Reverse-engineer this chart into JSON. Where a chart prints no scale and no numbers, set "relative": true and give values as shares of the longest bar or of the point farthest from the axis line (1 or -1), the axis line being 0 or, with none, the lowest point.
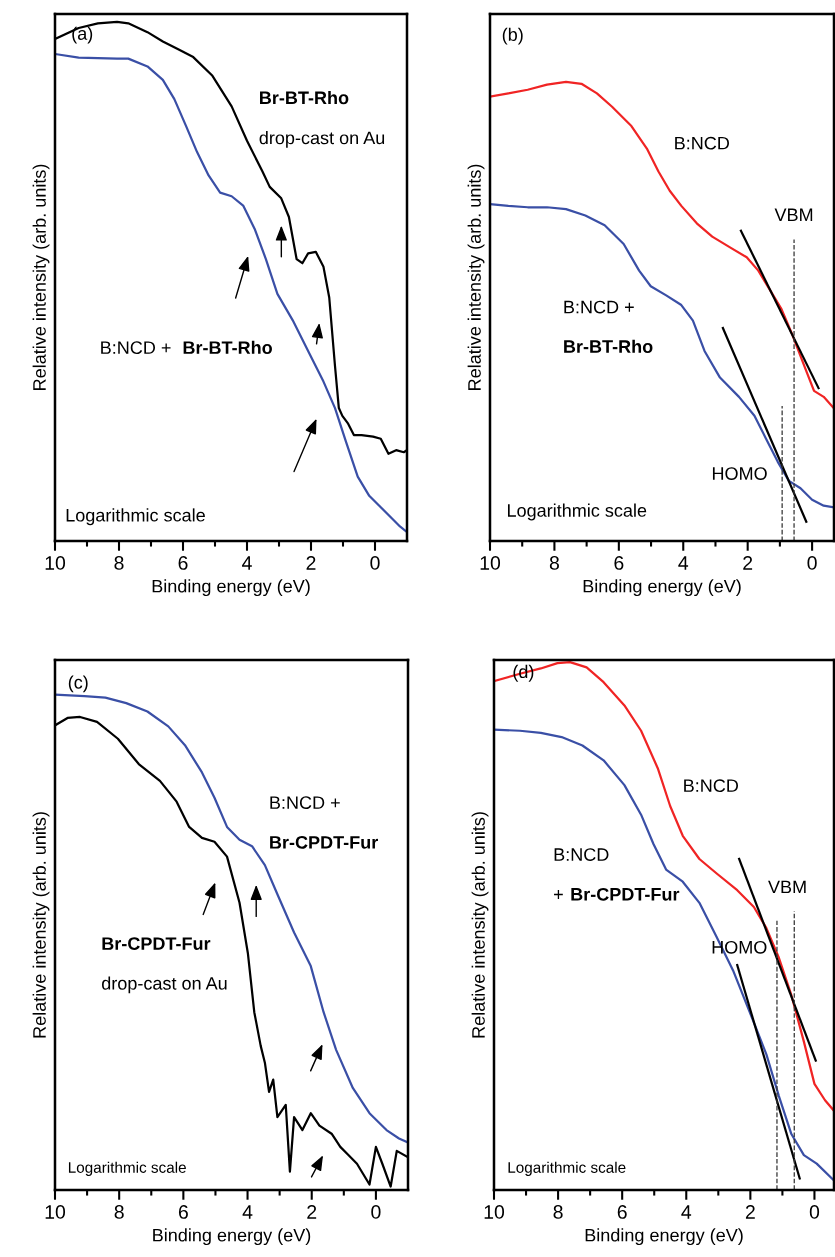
{
  "chart_data": [
    {
      "type": "line",
      "title": "(a)",
      "relative": true,
      "xlabel": "Binding energy (eV)",
      "ylabel": "Relative intensity (arb. units)",
      "xlim": [
        10,
        -1.0
      ],
      "xticks": [
        10,
        8,
        6,
        4,
        2,
        0,
        {
          "value": 9,
          "label": null
        },
        {
          "value": 7,
          "label": null
        },
        {
          "value": 5,
          "label": null
        },
        {
          "value": 3,
          "label": null
        },
        {
          "value": 1,
          "label": null
        }
      ],
      "line_style": "solid",
      "marker": "none",
      "legend": false,
      "grid": false,
      "series": [
        {
          "color": "#000000",
          "x": [
            10,
            9.26,
            8.66,
            8.06,
            7.71,
            7.11,
            6.63,
            6.15,
            5.68,
            5.08,
            4.48,
            4.0,
            3.52,
            3.29,
            2.93,
            2.69,
            2.45,
            2.27,
            2.09,
            1.85,
            1.61,
            1.43,
            1.25,
            1.13,
            1.02,
            0.84,
            0.66,
            0.42,
            0.06,
            -0.18,
            -0.42,
            -0.66,
            -0.9,
            -1.0
          ],
          "values": [
            0.967,
            0.988,
            0.997,
            1.0,
            0.997,
            0.98,
            0.962,
            0.947,
            0.932,
            0.896,
            0.837,
            0.771,
            0.712,
            0.682,
            0.66,
            0.624,
            0.543,
            0.535,
            0.554,
            0.557,
            0.528,
            0.469,
            0.337,
            0.256,
            0.241,
            0.226,
            0.204,
            0.204,
            0.201,
            0.197,
            0.168,
            0.175,
            0.171,
            0.175
          ]
        },
        {
          "color": "#3a4fa6",
          "x": [
            10,
            9.26,
            8.06,
            7.71,
            7.11,
            6.63,
            6.27,
            5.91,
            5.56,
            5.2,
            4.84,
            4.48,
            4.12,
            3.76,
            3.41,
            3.05,
            2.57,
            2.09,
            1.61,
            1.25,
            0.9,
            0.54,
            0.18,
            -0.18,
            -0.54,
            -0.78,
            -1.0
          ],
          "values": [
            0.938,
            0.931,
            0.929,
            0.929,
            0.914,
            0.888,
            0.851,
            0.8,
            0.749,
            0.704,
            0.671,
            0.664,
            0.646,
            0.601,
            0.543,
            0.476,
            0.425,
            0.366,
            0.307,
            0.256,
            0.19,
            0.124,
            0.087,
            0.065,
            0.043,
            0.028,
            0.017
          ]
        }
      ],
      "annotations": [
        "Br-BT-Rho",
        "drop-cast on Au",
        "B:NCD +",
        "Br-BT-Rho",
        "Logarithmic scale"
      ]
    },
    {
      "type": "line",
      "title": "(b)",
      "relative": true,
      "xlabel": "Binding energy (eV)",
      "ylabel": "Relative intensity (arb. units)",
      "xlim": [
        10,
        -0.68
      ],
      "xticks": [
        10,
        8,
        6,
        4,
        2,
        0,
        {
          "value": 9,
          "label": null
        },
        {
          "value": 7,
          "label": null
        },
        {
          "value": 5,
          "label": null
        },
        {
          "value": 3,
          "label": null
        },
        {
          "value": 1,
          "label": null
        }
      ],
      "line_style": "solid",
      "marker": "none",
      "legend": false,
      "grid": false,
      "series": [
        {
          "color": "#f02424",
          "x": [
            10,
            9.43,
            8.83,
            8.23,
            7.64,
            7.16,
            6.68,
            6.21,
            5.61,
            5.13,
            4.77,
            4.42,
            4.06,
            3.58,
            3.1,
            2.51,
            2.03,
            1.67,
            1.31,
            0.95,
            0.6,
            0.24,
            -0.06,
            -0.36,
            -0.68
          ],
          "values": [
            0.968,
            0.975,
            0.983,
            0.994,
            1.0,
            0.996,
            0.975,
            0.946,
            0.904,
            0.855,
            0.805,
            0.763,
            0.73,
            0.692,
            0.663,
            0.638,
            0.618,
            0.589,
            0.547,
            0.505,
            0.447,
            0.381,
            0.327,
            0.314,
            0.289
          ]
        },
        {
          "color": "#3a4fa6",
          "x": [
            10,
            9.43,
            8.83,
            8.23,
            7.64,
            7.04,
            6.44,
            5.85,
            5.37,
            5.01,
            4.53,
            4.06,
            3.7,
            3.34,
            2.86,
            2.27,
            1.79,
            1.43,
            1.07,
            0.72,
            0.36,
            0.0,
            -0.36,
            -0.68
          ],
          "values": [
            0.734,
            0.73,
            0.727,
            0.727,
            0.723,
            0.709,
            0.688,
            0.647,
            0.589,
            0.555,
            0.535,
            0.514,
            0.48,
            0.414,
            0.356,
            0.314,
            0.273,
            0.223,
            0.173,
            0.131,
            0.115,
            0.09,
            0.077,
            0.073
          ]
        },
        {
          "type": "line",
          "color": "#000000",
          "x": [
            2.21,
            -0.2
          ],
          "values": [
            0.676,
            0.333
          ]
        },
        {
          "type": "line",
          "color": "#000000",
          "x": [
            2.77,
            0.18
          ],
          "values": [
            0.464,
            0.042
          ]
        }
      ],
      "ref_lines": [
        {
          "axis": "x",
          "value": 0.56,
          "label": "VBM",
          "line_style": "dashed",
          "color": "#333333"
        },
        {
          "axis": "x",
          "value": 0.93,
          "label": "HOMO",
          "line_style": "dashed",
          "color": "#333333"
        }
      ],
      "annotations": [
        "B:NCD",
        "B:NCD +",
        "Br-BT-Rho",
        "Logarithmic scale"
      ]
    },
    {
      "type": "line",
      "title": "(c)",
      "relative": true,
      "xlabel": "Binding energy (eV)",
      "ylabel": "Relative intensity (arb. units)",
      "xlim": [
        10,
        -1.0
      ],
      "xticks": [
        10,
        8,
        6,
        4,
        2,
        0,
        {
          "value": 9,
          "label": null
        },
        {
          "value": 7,
          "label": null
        },
        {
          "value": 5,
          "label": null
        },
        {
          "value": 3,
          "label": null
        },
        {
          "value": 1,
          "label": null
        }
      ],
      "line_style": "solid",
      "marker": "none",
      "legend": false,
      "grid": false,
      "series": [
        {
          "color": "#3a4fa6",
          "x": [
            10,
            9.08,
            8.43,
            7.78,
            7.12,
            6.47,
            5.95,
            5.42,
            5.03,
            4.64,
            4.25,
            3.86,
            3.46,
            3.07,
            2.55,
            2.03,
            1.63,
            1.24,
            0.72,
            0.2,
            -0.33,
            -0.72,
            -1.0
          ],
          "values": [
            1.0,
            0.997,
            0.994,
            0.983,
            0.966,
            0.936,
            0.898,
            0.843,
            0.792,
            0.733,
            0.707,
            0.694,
            0.656,
            0.597,
            0.52,
            0.452,
            0.359,
            0.283,
            0.206,
            0.155,
            0.121,
            0.104,
            0.096
          ]
        },
        {
          "color": "#000000",
          "x": [
            10,
            9.61,
            9.22,
            8.69,
            8.04,
            7.39,
            6.73,
            6.21,
            5.82,
            5.42,
            5.03,
            4.64,
            4.25,
            3.99,
            3.79,
            3.59,
            3.46,
            3.33,
            3.2,
            3.07,
            2.81,
            2.68,
            2.55,
            2.29,
            2.03,
            1.76,
            1.37,
            1.11,
            0.85,
            0.59,
            0.2,
            0.0,
            -0.2,
            -0.46,
            -0.65,
            -1.0
          ],
          "values": [
            0.938,
            0.953,
            0.955,
            0.945,
            0.911,
            0.86,
            0.826,
            0.784,
            0.733,
            0.711,
            0.703,
            0.673,
            0.58,
            0.478,
            0.359,
            0.291,
            0.257,
            0.198,
            0.223,
            0.147,
            0.172,
            0.037,
            0.147,
            0.121,
            0.155,
            0.13,
            0.113,
            0.087,
            0.07,
            0.053,
            0.011,
            0.087,
            0.053,
            0.007,
            0.079,
            0.066
          ]
        }
      ],
      "annotations": [
        "B:NCD +",
        "Br-CPDT-Fur",
        "Br-CPDT-Fur",
        "drop-cast on Au",
        "Logarithmic scale"
      ]
    },
    {
      "type": "line",
      "title": "(d)",
      "relative": true,
      "xlabel": "Binding energy (eV)",
      "ylabel": "Relative intensity (arb. units)",
      "xlim": [
        10,
        -0.61
      ],
      "xticks": [
        10,
        8,
        6,
        4,
        2,
        0,
        {
          "value": 9,
          "label": null
        },
        {
          "value": 7,
          "label": null
        },
        {
          "value": 5,
          "label": null
        },
        {
          "value": 3,
          "label": null
        },
        {
          "value": 1,
          "label": null
        }
      ],
      "line_style": "solid",
      "marker": "none",
      "legend": false,
      "grid": false,
      "series": [
        {
          "color": "#f02424",
          "x": [
            10,
            9.19,
            8.54,
            8.02,
            7.63,
            7.11,
            6.58,
            5.93,
            5.41,
            4.89,
            4.5,
            4.11,
            3.59,
            3.06,
            2.41,
            1.89,
            1.5,
            1.11,
            0.72,
            0.33,
            0.0,
            -0.33,
            -0.61
          ],
          "values": [
            0.964,
            0.978,
            0.988,
            0.998,
            1.0,
            0.99,
            0.962,
            0.918,
            0.87,
            0.799,
            0.727,
            0.671,
            0.627,
            0.6,
            0.568,
            0.536,
            0.496,
            0.44,
            0.369,
            0.281,
            0.201,
            0.17,
            0.15
          ]
        },
        {
          "color": "#3a4fa6",
          "x": [
            10,
            9.19,
            8.54,
            7.89,
            7.24,
            6.58,
            5.93,
            5.41,
            5.02,
            4.63,
            4.11,
            3.59,
            3.06,
            2.54,
            2.02,
            1.5,
            1.11,
            0.72,
            0.33,
            -0.07,
            -0.61
          ],
          "values": [
            0.872,
            0.87,
            0.866,
            0.858,
            0.842,
            0.814,
            0.767,
            0.711,
            0.655,
            0.607,
            0.584,
            0.544,
            0.48,
            0.416,
            0.337,
            0.257,
            0.178,
            0.106,
            0.066,
            0.05,
            0.018
          ]
        },
        {
          "type": "line",
          "color": "#000000",
          "x": [
            2.35,
            -0.04
          ],
          "values": [
            0.627,
            0.245
          ]
        },
        {
          "type": "line",
          "color": "#000000",
          "x": [
            2.41,
            0.46
          ],
          "values": [
            0.426,
            0.022
          ]
        }
      ],
      "ref_lines": [
        {
          "axis": "x",
          "value": 0.63,
          "label": "VBM",
          "line_style": "dashed",
          "color": "#333333"
        },
        {
          "axis": "x",
          "value": 1.17,
          "label": "HOMO",
          "line_style": "dashed",
          "color": "#333333"
        }
      ],
      "annotations": [
        "B:NCD",
        "B:NCD",
        "+",
        "Br-CPDT-Fur",
        "Logarithmic scale"
      ]
    }
  ]
}
